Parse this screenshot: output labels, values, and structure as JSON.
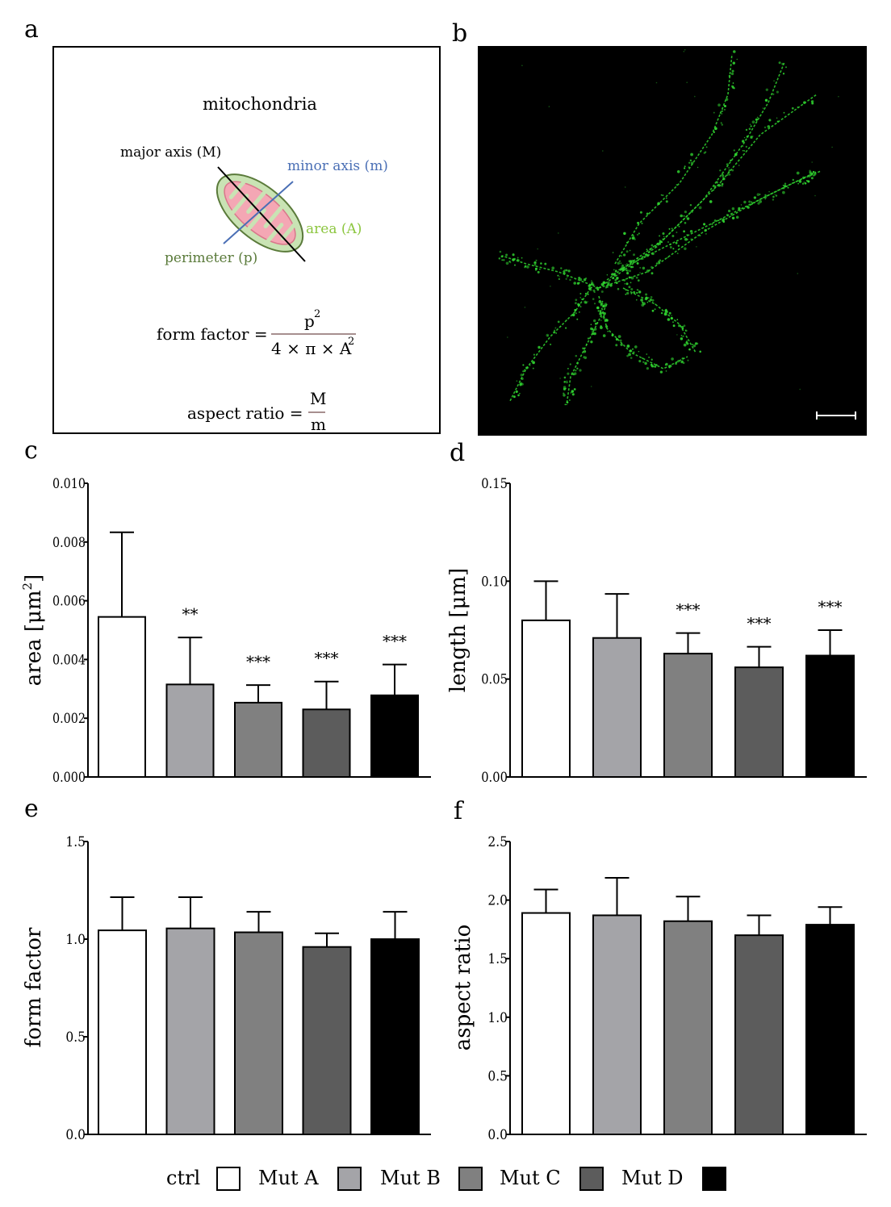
{
  "panels": {
    "a": "a",
    "b": "b",
    "c": "c",
    "d": "d",
    "e": "e",
    "f": "f"
  },
  "diagram": {
    "title": "mitochondria",
    "major_axis": "major axis (M)",
    "minor_axis": "minor  axis (m)",
    "area": "area  (A)",
    "perimeter": "perimeter  (p)",
    "form_factor_label": "form factor =",
    "form_factor_numerator": "p",
    "form_factor_numerator_sup": "2",
    "form_factor_denominator": "4 × π × A",
    "form_factor_denominator_sup": "2",
    "aspect_ratio_label": "aspect ratio =",
    "aspect_ratio_numerator": "M",
    "aspect_ratio_denominator": "m",
    "colors": {
      "outer": "#c9e3b4",
      "inner": "#f4a7b4",
      "outline": "#5a7a3a",
      "blue": "#4a6fb5",
      "green": "#8cc63f",
      "darkgreen": "#5a7a3a"
    }
  },
  "micrograph": {
    "background": "#000000",
    "signal_color": "#2fd12f",
    "scale_bar": true
  },
  "legend": {
    "items": [
      {
        "label": "ctrl",
        "color": "#ffffff"
      },
      {
        "label": "Mut A",
        "color": "#a4a4a8"
      },
      {
        "label": "Mut B",
        "color": "#808080"
      },
      {
        "label": "Mut C",
        "color": "#5c5c5c"
      },
      {
        "label": "Mut D",
        "color": "#000000"
      }
    ]
  },
  "chart_data": [
    {
      "panel": "c",
      "type": "bar",
      "categories": [
        "ctrl",
        "Mut A",
        "Mut B",
        "Mut C",
        "Mut D"
      ],
      "values": [
        0.00545,
        0.00315,
        0.00253,
        0.0023,
        0.00278
      ],
      "errors": [
        0.00288,
        0.0016,
        0.0006,
        0.00095,
        0.00105
      ],
      "significance": [
        "",
        "**",
        "***",
        "***",
        "***"
      ],
      "ylabel": "area [μm",
      "ylabel_sup": "2",
      "ylabel_end": "]",
      "ylim": [
        0,
        0.01
      ],
      "yticks": [
        "0.000",
        "0.002",
        "0.004",
        "0.006",
        "0.008",
        "0.010"
      ],
      "ytick_values": [
        0,
        0.002,
        0.004,
        0.006,
        0.008,
        0.01
      ]
    },
    {
      "panel": "d",
      "type": "bar",
      "categories": [
        "ctrl",
        "Mut A",
        "Mut B",
        "Mut C",
        "Mut D"
      ],
      "values": [
        0.08,
        0.071,
        0.063,
        0.056,
        0.062
      ],
      "errors": [
        0.02,
        0.0225,
        0.0105,
        0.0105,
        0.013
      ],
      "significance": [
        "",
        "",
        "***",
        "***",
        "***"
      ],
      "ylabel": "length [μm]",
      "ylim": [
        0,
        0.15
      ],
      "yticks": [
        "0.00",
        "0.05",
        "0.10",
        "0.15"
      ],
      "ytick_values": [
        0,
        0.05,
        0.1,
        0.15
      ]
    },
    {
      "panel": "e",
      "type": "bar",
      "categories": [
        "ctrl",
        "Mut A",
        "Mut B",
        "Mut C",
        "Mut D"
      ],
      "values": [
        1.045,
        1.055,
        1.035,
        0.96,
        1.0
      ],
      "errors": [
        0.17,
        0.16,
        0.105,
        0.07,
        0.14
      ],
      "significance": [
        "",
        "",
        "",
        "",
        ""
      ],
      "ylabel": "form factor",
      "ylim": [
        0,
        1.5
      ],
      "yticks": [
        "0.0",
        "0.5",
        "1.0",
        "1.5"
      ],
      "ytick_values": [
        0,
        0.5,
        1.0,
        1.5
      ]
    },
    {
      "panel": "f",
      "type": "bar",
      "categories": [
        "ctrl",
        "Mut A",
        "Mut B",
        "Mut C",
        "Mut D"
      ],
      "values": [
        1.89,
        1.87,
        1.82,
        1.7,
        1.79
      ],
      "errors": [
        0.2,
        0.32,
        0.21,
        0.17,
        0.15
      ],
      "significance": [
        "",
        "",
        "",
        "",
        ""
      ],
      "ylabel": "aspect ratio",
      "ylim": [
        0,
        2.5
      ],
      "yticks": [
        "0.0",
        "0.5",
        "1.0",
        "1.5",
        "2.0",
        "2.5"
      ],
      "ytick_values": [
        0,
        0.5,
        1.0,
        1.5,
        2.0,
        2.5
      ]
    }
  ]
}
